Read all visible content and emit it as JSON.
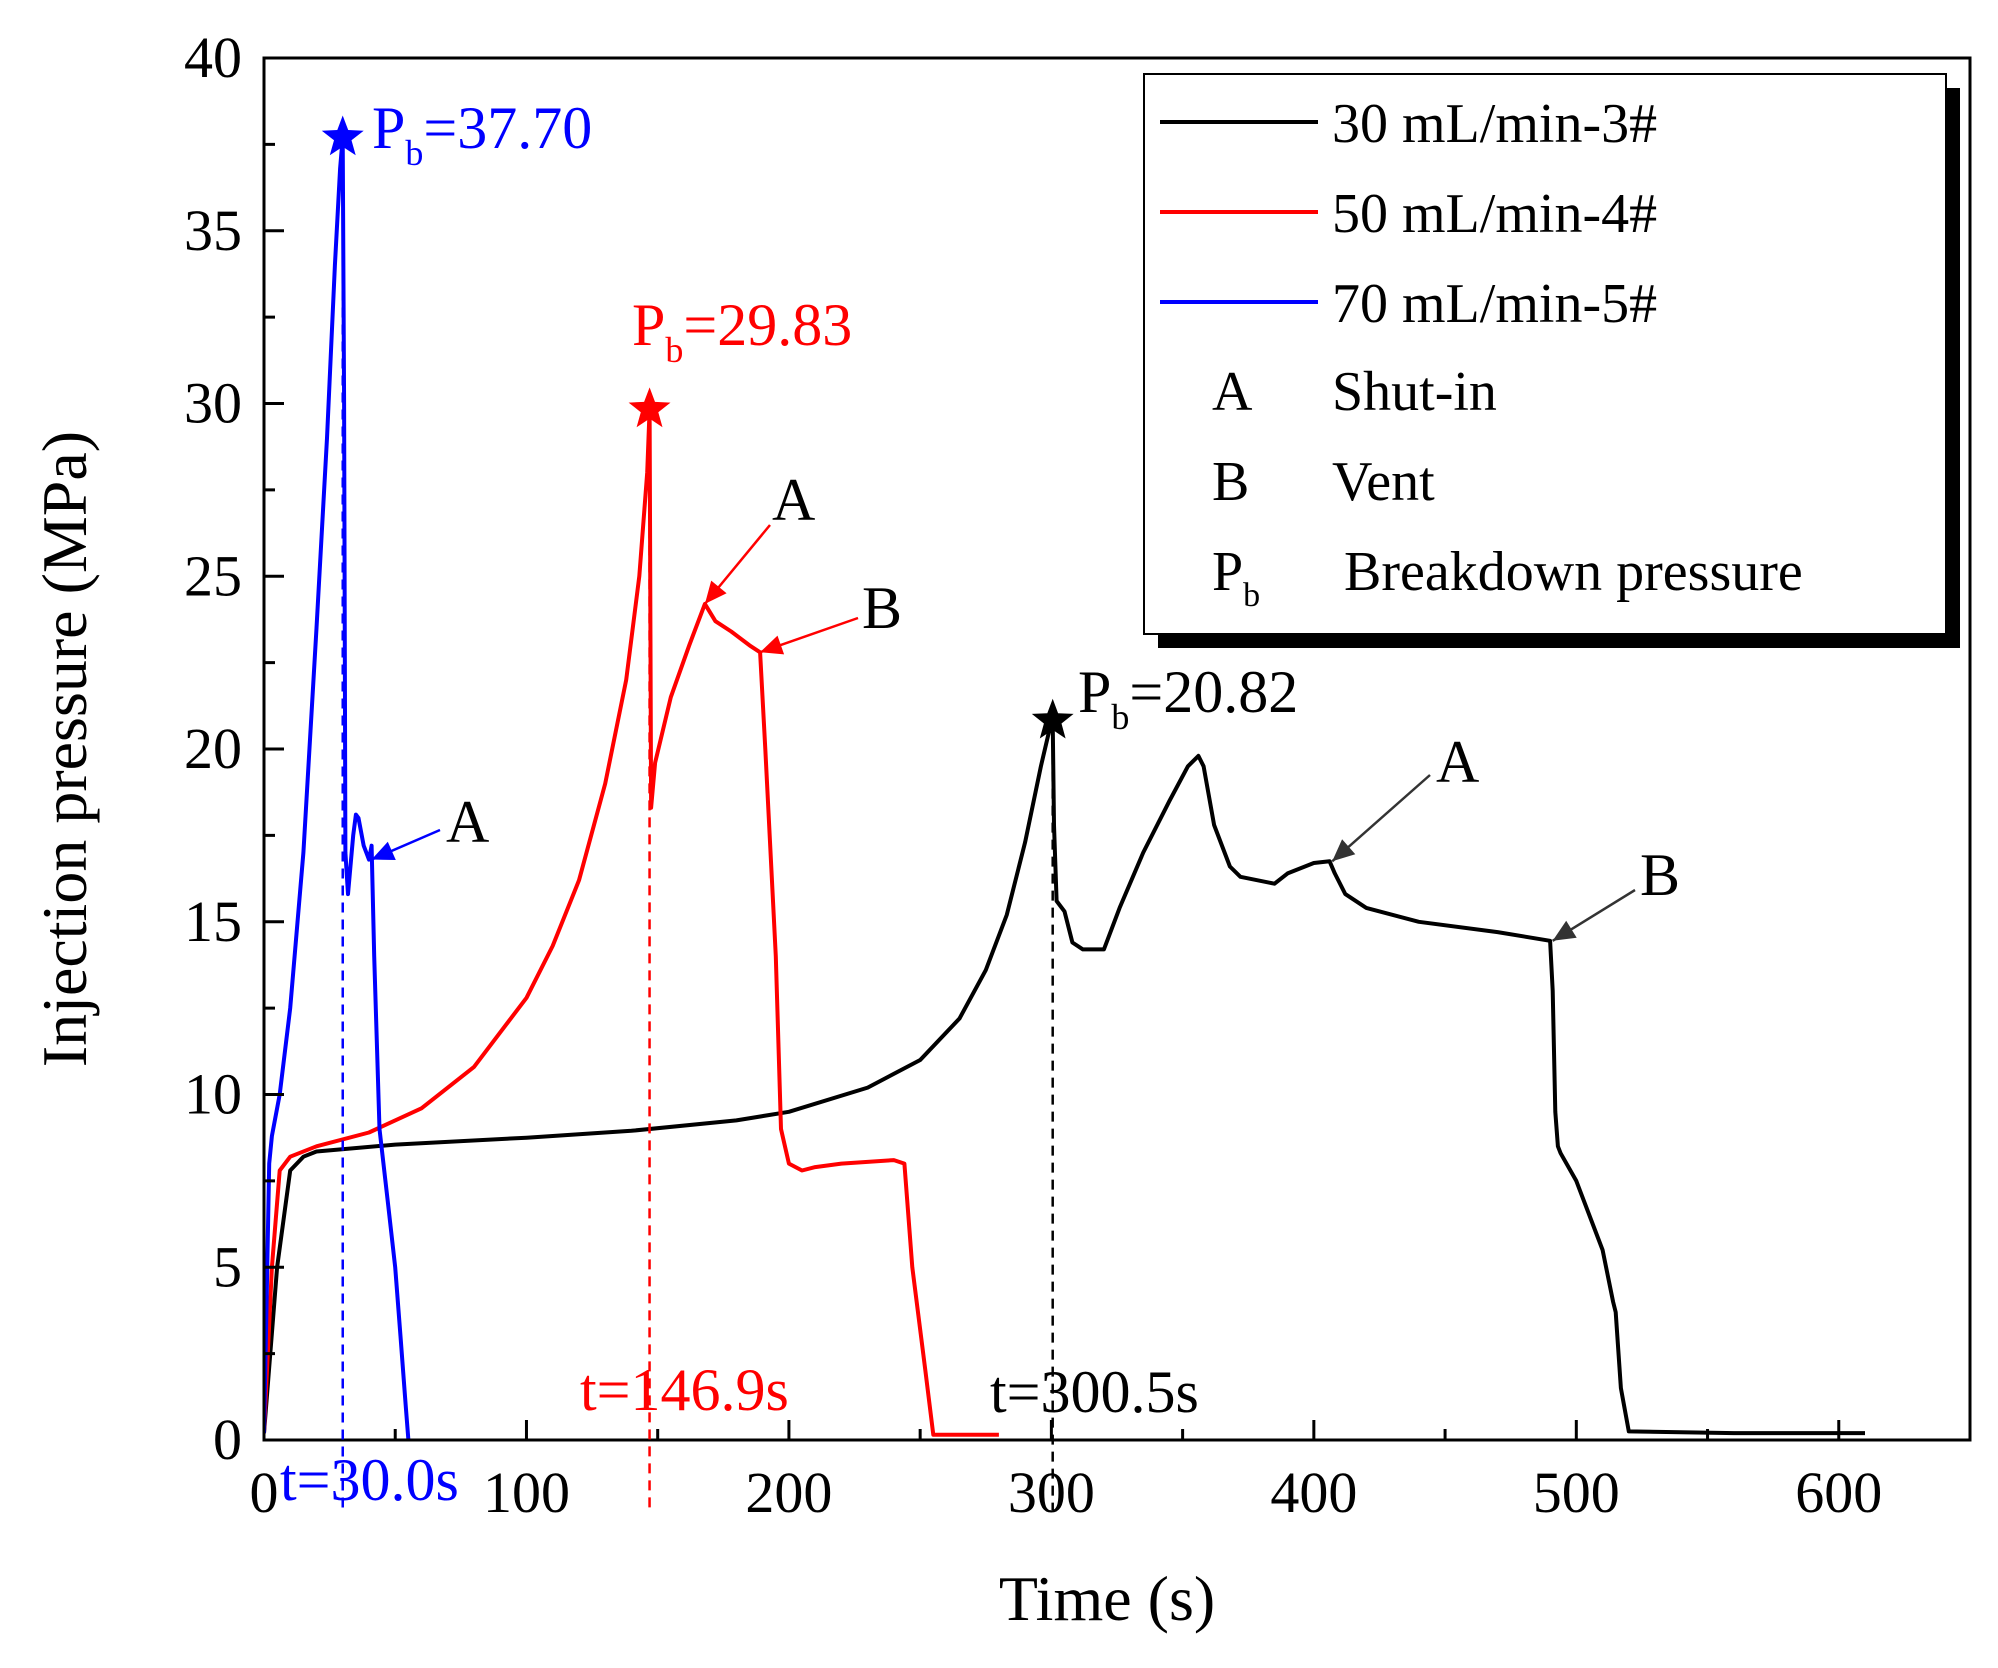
{
  "chart_data": {
    "type": "line",
    "xlabel": "Time (s)",
    "ylabel": "Injection pressure (MPa)",
    "xlim": [
      0,
      650
    ],
    "ylim": [
      0,
      40
    ],
    "xticks": [
      0,
      100,
      200,
      300,
      400,
      500,
      600
    ],
    "yticks": [
      0,
      5,
      10,
      15,
      20,
      25,
      30,
      35,
      40
    ],
    "xtick_labels": [
      "0",
      "100",
      "200",
      "300",
      "400",
      "500",
      "600"
    ],
    "ytick_labels": [
      "0",
      "5",
      "10",
      "15",
      "20",
      "25",
      "30",
      "35",
      "40"
    ],
    "grid": false,
    "legend_position": "top-right",
    "series": [
      {
        "name": "30 mL/min-3#",
        "color": "#000000",
        "x": [
          0,
          5,
          10,
          15,
          20,
          50,
          100,
          140,
          180,
          200,
          230,
          250,
          265,
          275,
          283,
          290,
          296,
          300,
          300.5,
          301,
          302,
          305,
          308,
          312,
          320,
          326,
          335,
          345,
          352,
          356,
          358,
          362,
          368,
          372,
          385,
          390,
          400,
          406,
          408,
          412,
          420,
          440,
          470,
          490,
          491,
          492,
          493,
          494,
          500,
          510,
          514,
          515,
          517,
          520,
          560,
          600,
          610
        ],
        "y": [
          0.2,
          5.0,
          7.8,
          8.2,
          8.35,
          8.55,
          8.75,
          8.95,
          9.25,
          9.5,
          10.2,
          11.0,
          12.2,
          13.6,
          15.2,
          17.3,
          19.5,
          20.8,
          20.82,
          17.8,
          15.6,
          15.3,
          14.4,
          14.2,
          14.2,
          15.4,
          17.0,
          18.5,
          19.5,
          19.8,
          19.5,
          17.8,
          16.6,
          16.3,
          16.1,
          16.4,
          16.7,
          16.75,
          16.4,
          15.8,
          15.4,
          15.0,
          14.7,
          14.45,
          13.0,
          9.5,
          8.5,
          8.3,
          7.5,
          5.5,
          4.0,
          3.7,
          1.5,
          0.25,
          0.2,
          0.2,
          0.2
        ]
      },
      {
        "name": "50 mL/min-4#",
        "color": "#ff0000",
        "x": [
          0,
          3,
          6,
          10,
          20,
          40,
          60,
          80,
          100,
          110,
          120,
          130,
          138,
          143,
          146,
          146.9,
          147.5,
          149,
          155,
          162,
          168,
          172,
          178,
          185,
          189,
          191,
          195,
          197,
          200,
          205,
          210,
          220,
          240,
          244,
          247,
          252,
          255,
          260,
          270,
          280
        ],
        "y": [
          0.2,
          5.0,
          7.8,
          8.2,
          8.5,
          8.9,
          9.6,
          10.8,
          12.8,
          14.3,
          16.2,
          19.0,
          22.0,
          25.0,
          28.0,
          29.83,
          18.3,
          19.6,
          21.5,
          23.0,
          24.2,
          23.7,
          23.4,
          23.0,
          22.8,
          20.0,
          14.0,
          9.0,
          8.0,
          7.8,
          7.9,
          8.0,
          8.1,
          8.0,
          5.0,
          2.0,
          0.15,
          0.15,
          0.15,
          0.15
        ]
      },
      {
        "name": "70 mL/min-5#",
        "color": "#0000ff",
        "x": [
          0,
          1,
          2,
          3,
          6,
          10,
          15,
          20,
          24,
          27,
          29,
          30,
          30.5,
          31,
          32,
          34,
          35,
          36,
          38,
          40,
          41,
          42,
          44,
          47,
          50,
          52,
          54,
          55
        ],
        "y": [
          0.2,
          4.0,
          8.0,
          8.8,
          10.0,
          12.5,
          17.0,
          23.5,
          29.0,
          34.0,
          36.8,
          37.7,
          30.0,
          17.0,
          15.8,
          17.5,
          18.1,
          18.0,
          17.2,
          16.8,
          17.2,
          14.0,
          9.0,
          7.0,
          5.0,
          3.0,
          1.0,
          0.0
        ]
      }
    ],
    "breakdown_points": [
      {
        "series": "70 mL/min-5#",
        "t": 30.0,
        "p": 37.7,
        "label_main": "P",
        "label_sub": "b",
        "label_value": "=37.70",
        "time_label": "t=30.0s",
        "color": "#0000ff"
      },
      {
        "series": "50 mL/min-4#",
        "t": 146.9,
        "p": 29.83,
        "label_main": "P",
        "label_sub": "b",
        "label_value": "=29.83",
        "time_label": "t=146.9s",
        "color": "#ff0000"
      },
      {
        "series": "30 mL/min-3#",
        "t": 300.5,
        "p": 20.82,
        "label_main": "P",
        "label_sub": "b",
        "label_value": "=20.82",
        "time_label": "t=300.5s",
        "color": "#000000"
      }
    ],
    "event_annotations": [
      {
        "label": "A",
        "series": "70 mL/min-5#",
        "t": 41,
        "p": 16.8,
        "color": "#0000ff"
      },
      {
        "label": "A",
        "series": "50 mL/min-4#",
        "t": 168,
        "p": 24.2,
        "color": "#ff0000"
      },
      {
        "label": "B",
        "series": "50 mL/min-4#",
        "t": 189,
        "p": 22.8,
        "color": "#ff0000"
      },
      {
        "label": "A",
        "series": "30 mL/min-3#",
        "t": 407,
        "p": 16.75,
        "color": "#333333"
      },
      {
        "label": "B",
        "series": "30 mL/min-3#",
        "t": 491,
        "p": 14.45,
        "color": "#333333"
      }
    ],
    "legend_extra": [
      {
        "symbol": "A",
        "symbol_sub": "",
        "text": "Shut-in"
      },
      {
        "symbol": "B",
        "symbol_sub": "",
        "text": "Vent"
      },
      {
        "symbol": "P",
        "symbol_sub": "b",
        "text": "Breakdown pressure"
      }
    ]
  }
}
